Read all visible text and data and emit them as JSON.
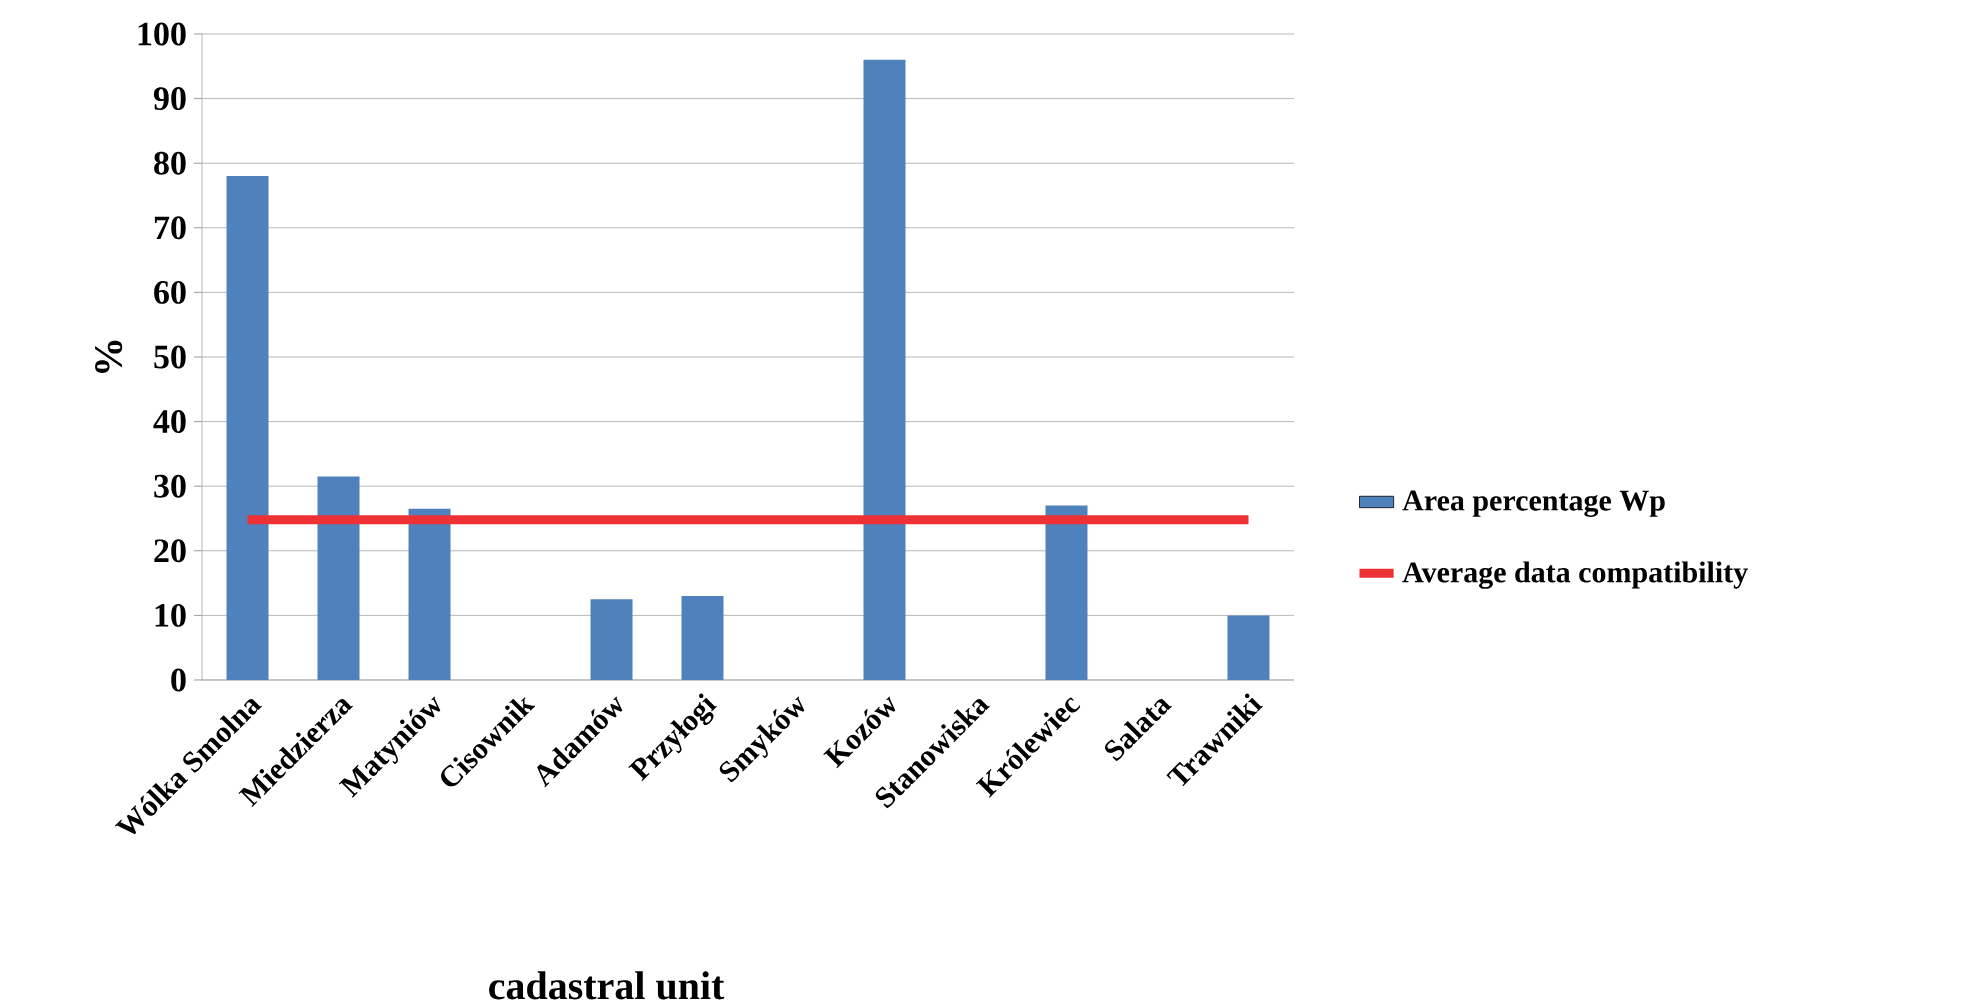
{
  "chart_data": {
    "type": "bar",
    "xlabel": "cadastral unit",
    "ylabel": "%",
    "categories": [
      "Wólka Smolna",
      "Miedzierza",
      "Matyniów",
      "Cisownik",
      "Adamów",
      "Przyłogi",
      "Smyków",
      "Kozów",
      "Stanowiska",
      "Królewiec",
      "Salata",
      "Trawniki"
    ],
    "series": [
      {
        "name": "Area percentage Wp",
        "color": "#4f81bd",
        "values": [
          78,
          31.5,
          26.5,
          0,
          12.5,
          13,
          0,
          96,
          0,
          27,
          0,
          10
        ]
      },
      {
        "name": "Average data compatibility",
        "type": "line",
        "color": "#ee3134",
        "values": [
          24.8,
          24.8,
          24.8,
          24.8,
          24.8,
          24.8,
          24.8,
          24.8,
          24.8,
          24.8,
          24.8,
          24.8
        ]
      }
    ],
    "ylim": [
      0,
      100
    ],
    "yticks": [
      0,
      10,
      20,
      30,
      40,
      50,
      60,
      70,
      80,
      90,
      100
    ],
    "grid": "y",
    "legend": "right"
  }
}
